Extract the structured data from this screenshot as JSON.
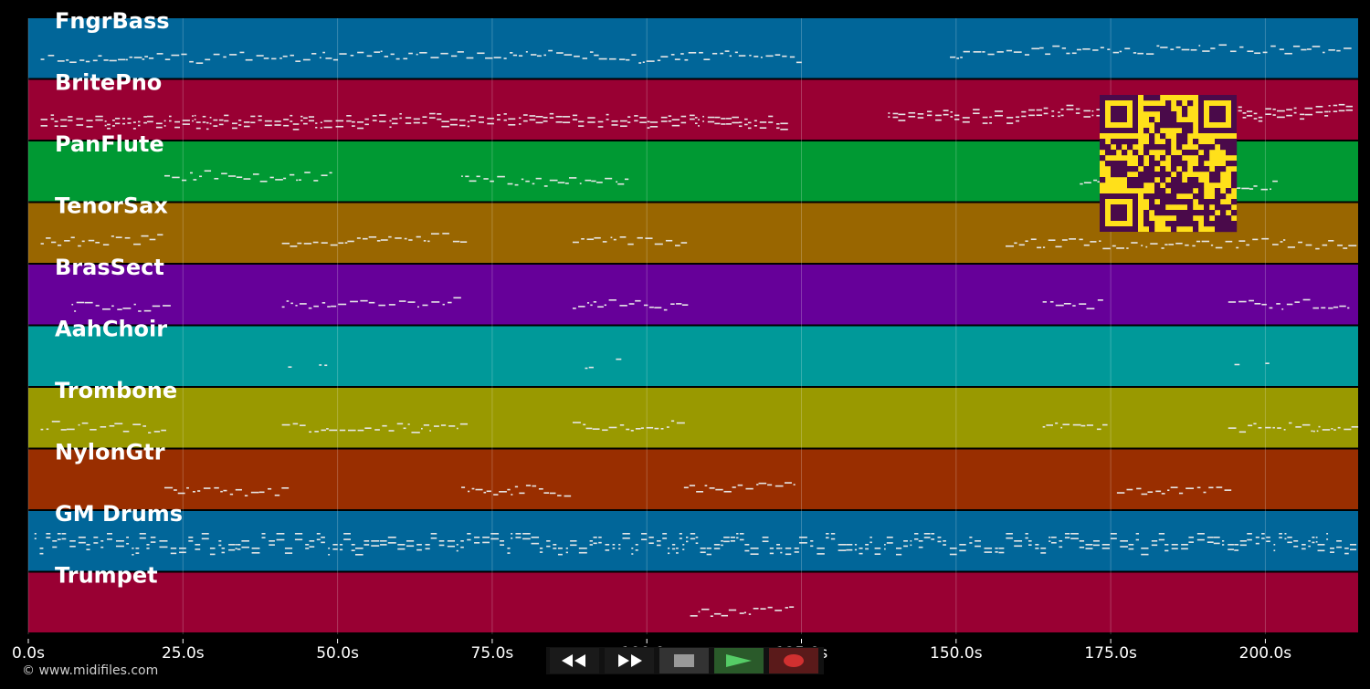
{
  "tracks": [
    {
      "name": "FngrBass",
      "color": "#016699"
    },
    {
      "name": "BritePno",
      "color": "#990033"
    },
    {
      "name": "PanFlute",
      "color": "#009933"
    },
    {
      "name": "TenorSax",
      "color": "#996600"
    },
    {
      "name": "BrasSect",
      "color": "#660099"
    },
    {
      "name": "AahChoir",
      "color": "#009999"
    },
    {
      "name": "Trombone",
      "color": "#999900"
    },
    {
      "name": "NylonGtr",
      "color": "#992e00"
    },
    {
      "name": "GM Drums",
      "color": "#016699"
    },
    {
      "name": "Trumpet",
      "color": "#990033"
    }
  ],
  "timeline": {
    "duration_s": 215,
    "ticks": [
      {
        "value": 0,
        "label": "0.0s"
      },
      {
        "value": 25,
        "label": "25.0s"
      },
      {
        "value": 50,
        "label": "50.0s"
      },
      {
        "value": 75,
        "label": "75.0s"
      },
      {
        "value": 100,
        "label": "100.0s"
      },
      {
        "value": 125,
        "label": "125.0s"
      },
      {
        "value": 150,
        "label": "150.0s"
      },
      {
        "value": 175,
        "label": "175.0s"
      },
      {
        "value": 200,
        "label": "200.0s"
      }
    ]
  },
  "note_segments": [
    {
      "track": 0,
      "segs": [
        [
          2,
          125
        ],
        [
          149,
          214
        ]
      ]
    },
    {
      "track": 1,
      "segs": [
        [
          2,
          123
        ],
        [
          139,
          214
        ]
      ]
    },
    {
      "track": 2,
      "segs": [
        [
          22,
          49
        ],
        [
          70,
          97
        ],
        [
          170,
          202
        ]
      ]
    },
    {
      "track": 3,
      "segs": [
        [
          2,
          22
        ],
        [
          41,
          70
        ],
        [
          88,
          106
        ],
        [
          158,
          214
        ]
      ]
    },
    {
      "track": 4,
      "segs": [
        [
          7,
          22
        ],
        [
          41,
          70
        ],
        [
          88,
          106
        ],
        [
          164,
          174
        ],
        [
          194,
          214
        ]
      ]
    },
    {
      "track": 5,
      "segs": [
        [
          42,
          43
        ],
        [
          47,
          48
        ],
        [
          90,
          91
        ],
        [
          95,
          96
        ],
        [
          195,
          196
        ],
        [
          200,
          201
        ]
      ]
    },
    {
      "track": 6,
      "segs": [
        [
          2,
          22
        ],
        [
          41,
          70
        ],
        [
          88,
          106
        ],
        [
          164,
          174
        ],
        [
          194,
          214
        ]
      ]
    },
    {
      "track": 7,
      "segs": [
        [
          22,
          41
        ],
        [
          70,
          88
        ],
        [
          106,
          124
        ],
        [
          176,
          194
        ]
      ]
    },
    {
      "track": 8,
      "segs": [
        [
          1,
          214
        ]
      ]
    },
    {
      "track": 9,
      "segs": [
        [
          107,
          124
        ]
      ]
    }
  ],
  "qr_colors": {
    "fg": "#4a0a4a",
    "bg": "#ffe01a"
  },
  "copyright": "© www.midifiles.com",
  "transport": {
    "buttons": [
      {
        "name": "rewind-button",
        "icon": "rewind-icon"
      },
      {
        "name": "fast-forward-button",
        "icon": "fast-forward-icon"
      },
      {
        "name": "stop-button",
        "icon": "stop-icon"
      },
      {
        "name": "play-button",
        "icon": "play-icon"
      },
      {
        "name": "record-button",
        "icon": "record-icon"
      }
    ]
  }
}
